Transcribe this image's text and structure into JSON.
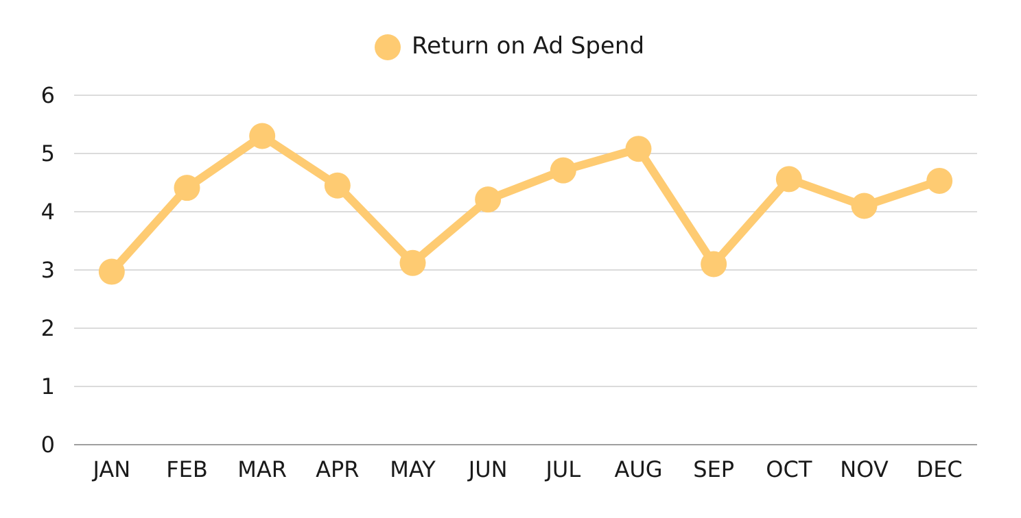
{
  "chart_data": {
    "type": "line",
    "categories": [
      "JAN",
      "FEB",
      "MAR",
      "APR",
      "MAY",
      "JUN",
      "JUL",
      "AUG",
      "SEP",
      "OCT",
      "NOV",
      "DEC"
    ],
    "series": [
      {
        "name": "Return on Ad Spend",
        "color": "#FECB72",
        "values": [
          2.97,
          4.41,
          5.3,
          4.45,
          3.12,
          4.21,
          4.71,
          5.08,
          3.1,
          4.56,
          4.1,
          4.53
        ]
      }
    ],
    "title": "",
    "xlabel": "",
    "ylabel": "",
    "ylim": [
      0,
      6
    ],
    "yticks": [
      "0",
      "1",
      "2",
      "3",
      "4",
      "5",
      "6"
    ],
    "grid": true,
    "legend_position": "top-center",
    "markers": true
  }
}
